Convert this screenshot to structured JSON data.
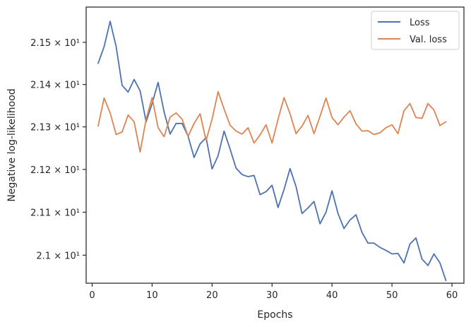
{
  "chart_data": {
    "type": "line",
    "xlabel": "Epochs",
    "ylabel": "Negative log-likelihood",
    "xlim": [
      -1,
      62
    ],
    "ylim": [
      20.935,
      21.584
    ],
    "x_ticks": [
      0,
      10,
      20,
      30,
      40,
      50,
      60
    ],
    "y_ticks": [
      {
        "value": 21.5,
        "label": "2.15 × 10¹"
      },
      {
        "value": 21.4,
        "label": "2.14 × 10¹"
      },
      {
        "value": 21.3,
        "label": "2.13 × 10¹"
      },
      {
        "value": 21.2,
        "label": "2.12 × 10¹"
      },
      {
        "value": 21.1,
        "label": "2.11 × 10¹"
      },
      {
        "value": 21.0,
        "label": "2.1 × 10¹"
      }
    ],
    "y_scale": "log",
    "grid": false,
    "legend_position": "top-right",
    "x": [
      1,
      2,
      3,
      4,
      5,
      6,
      7,
      8,
      9,
      10,
      11,
      12,
      13,
      14,
      15,
      16,
      17,
      18,
      19,
      20,
      21,
      22,
      23,
      24,
      25,
      26,
      27,
      28,
      29,
      30,
      31,
      32,
      33,
      34,
      35,
      36,
      37,
      38,
      39,
      40,
      41,
      42,
      43,
      44,
      45,
      46,
      47,
      48,
      49,
      50,
      51,
      52,
      53,
      54,
      55,
      56,
      57,
      58,
      59
    ],
    "series": [
      {
        "name": "Loss",
        "color": "#4c72b0",
        "values": [
          21.45,
          21.49,
          21.55,
          21.49,
          21.398,
          21.382,
          21.412,
          21.385,
          21.312,
          21.355,
          21.405,
          21.335,
          21.283,
          21.308,
          21.308,
          21.278,
          21.228,
          21.26,
          21.275,
          21.201,
          21.232,
          21.29,
          21.248,
          21.203,
          21.188,
          21.183,
          21.186,
          21.141,
          21.148,
          21.163,
          21.111,
          21.153,
          21.202,
          21.16,
          21.097,
          21.11,
          21.125,
          21.073,
          21.1,
          21.15,
          21.097,
          21.062,
          21.082,
          21.094,
          21.053,
          21.028,
          21.028,
          21.018,
          21.011,
          21.003,
          21.004,
          20.982,
          21.026,
          21.04,
          20.991,
          20.976,
          21.003,
          20.982,
          20.941
        ]
      },
      {
        "name": "Val. loss",
        "color": "#dd8452",
        "values": [
          21.302,
          21.368,
          21.333,
          21.282,
          21.288,
          21.328,
          21.312,
          21.241,
          21.318,
          21.369,
          21.298,
          21.277,
          21.323,
          21.333,
          21.318,
          21.278,
          21.308,
          21.331,
          21.268,
          21.318,
          21.383,
          21.342,
          21.304,
          21.29,
          21.283,
          21.298,
          21.262,
          21.281,
          21.305,
          21.262,
          21.318,
          21.369,
          21.331,
          21.284,
          21.302,
          21.327,
          21.284,
          21.325,
          21.368,
          21.322,
          21.305,
          21.323,
          21.338,
          21.307,
          21.29,
          21.291,
          21.282,
          21.286,
          21.298,
          21.305,
          21.284,
          21.338,
          21.355,
          21.322,
          21.32,
          21.355,
          21.34,
          21.303,
          21.312
        ]
      }
    ]
  }
}
